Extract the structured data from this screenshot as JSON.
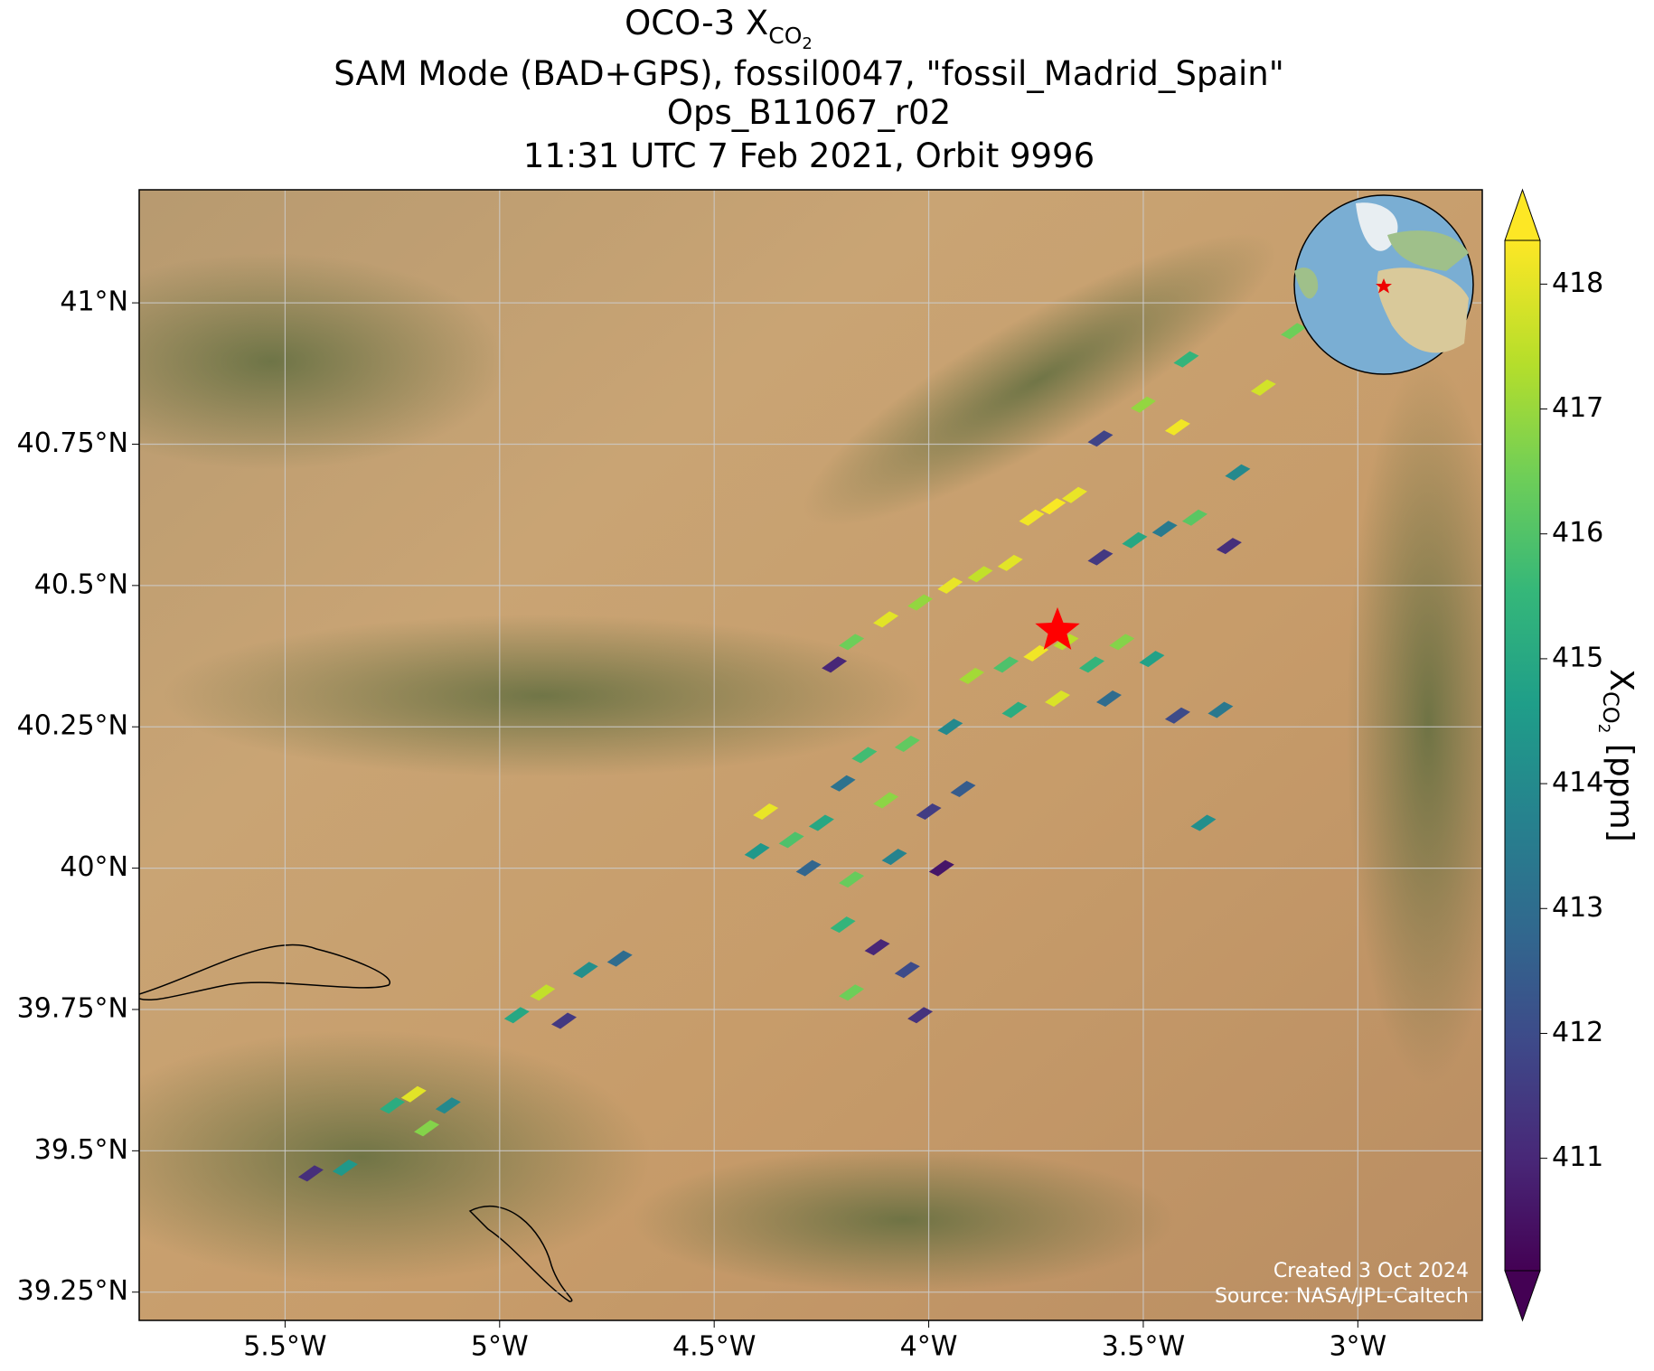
{
  "chart_data": {
    "type": "map",
    "title_prefix": "OCO-3 X",
    "title_sub": "CO",
    "title_subsub": "2",
    "title_lines": [
      "SAM Mode (BAD+GPS), fossil0047, \"fossil_Madrid_Spain\"",
      "Ops_B11067_r02",
      "11:31 UTC 7 Feb 2021, Orbit 9996"
    ],
    "xlim": [
      -5.84,
      -2.71
    ],
    "ylim": [
      39.2,
      41.2
    ],
    "xticks": [
      {
        "value": -5.5,
        "label": "5.5°W"
      },
      {
        "value": -5,
        "label": "5°W"
      },
      {
        "value": -4.5,
        "label": "4.5°W"
      },
      {
        "value": -4,
        "label": "4°W"
      },
      {
        "value": -3.5,
        "label": "3.5°W"
      },
      {
        "value": -3,
        "label": "3°W"
      }
    ],
    "yticks": [
      {
        "value": 39.25,
        "label": "39.25°N"
      },
      {
        "value": 39.5,
        "label": "39.5°N"
      },
      {
        "value": 39.75,
        "label": "39.75°N"
      },
      {
        "value": 40,
        "label": "40°N"
      },
      {
        "value": 40.25,
        "label": "40.25°N"
      },
      {
        "value": 40.5,
        "label": "40.5°N"
      },
      {
        "value": 40.75,
        "label": "40.75°N"
      },
      {
        "value": 41,
        "label": "41°N"
      }
    ],
    "grid": true,
    "colorbar": {
      "lim": [
        410.1,
        418.35
      ],
      "ticks": [
        411,
        412,
        413,
        414,
        415,
        416,
        417,
        418
      ],
      "label_main": "X",
      "label_sub": "CO",
      "label_subsub": "2",
      "label_unit": " [ppm]"
    },
    "target": {
      "lon": -3.7,
      "lat": 40.42
    },
    "soundings": [
      [
        -3.71,
        40.64,
        418.3
      ],
      [
        -3.76,
        40.62,
        418.2
      ],
      [
        -3.66,
        40.66,
        418.1
      ],
      [
        -3.81,
        40.54,
        418.0
      ],
      [
        -3.88,
        40.52,
        417.6
      ],
      [
        -3.95,
        40.5,
        418.1
      ],
      [
        -4.02,
        40.47,
        417.0
      ],
      [
        -4.1,
        40.44,
        418.0
      ],
      [
        -4.18,
        40.4,
        416.5
      ],
      [
        -4.22,
        40.36,
        411.0
      ],
      [
        -3.6,
        40.55,
        411.5
      ],
      [
        -3.52,
        40.58,
        415.0
      ],
      [
        -3.45,
        40.6,
        413.5
      ],
      [
        -3.38,
        40.62,
        416.2
      ],
      [
        -3.3,
        40.57,
        411.2
      ],
      [
        -3.68,
        40.4,
        417.5
      ],
      [
        -3.75,
        40.38,
        418.2
      ],
      [
        -3.82,
        40.36,
        416.0
      ],
      [
        -3.9,
        40.34,
        417.2
      ],
      [
        -3.62,
        40.36,
        415.5
      ],
      [
        -3.55,
        40.4,
        416.8
      ],
      [
        -3.48,
        40.37,
        414.8
      ],
      [
        -3.58,
        40.3,
        413.0
      ],
      [
        -3.7,
        40.3,
        417.9
      ],
      [
        -3.8,
        40.28,
        415.2
      ],
      [
        -3.95,
        40.25,
        414.0
      ],
      [
        -4.05,
        40.22,
        416.3
      ],
      [
        -4.15,
        40.2,
        415.8
      ],
      [
        -4.2,
        40.15,
        413.2
      ],
      [
        -4.1,
        40.12,
        416.9
      ],
      [
        -4.0,
        40.1,
        411.6
      ],
      [
        -3.92,
        40.14,
        412.5
      ],
      [
        -4.25,
        40.08,
        415.0
      ],
      [
        -4.32,
        40.05,
        416.0
      ],
      [
        -4.38,
        40.1,
        418.1
      ],
      [
        -4.4,
        40.03,
        414.5
      ],
      [
        -4.28,
        40.0,
        412.8
      ],
      [
        -4.18,
        39.98,
        416.4
      ],
      [
        -4.08,
        40.02,
        413.8
      ],
      [
        -3.97,
        40.0,
        410.6
      ],
      [
        -4.2,
        39.9,
        415.5
      ],
      [
        -4.12,
        39.86,
        411.0
      ],
      [
        -4.05,
        39.82,
        412.0
      ],
      [
        -4.18,
        39.78,
        416.5
      ],
      [
        -4.02,
        39.74,
        411.3
      ],
      [
        -3.42,
        40.27,
        412.0
      ],
      [
        -3.32,
        40.28,
        413.4
      ],
      [
        -3.36,
        40.08,
        414.2
      ],
      [
        -3.5,
        40.82,
        417.0
      ],
      [
        -3.42,
        40.78,
        418.2
      ],
      [
        -3.28,
        40.7,
        414.0
      ],
      [
        -3.22,
        40.85,
        417.8
      ],
      [
        -3.15,
        40.95,
        416.5
      ],
      [
        -3.4,
        40.9,
        415.5
      ],
      [
        -3.6,
        40.76,
        411.8
      ],
      [
        -4.8,
        39.82,
        414.2
      ],
      [
        -4.72,
        39.84,
        413.0
      ],
      [
        -4.9,
        39.78,
        417.6
      ],
      [
        -4.96,
        39.74,
        415.0
      ],
      [
        -4.85,
        39.73,
        411.5
      ],
      [
        -5.2,
        39.6,
        418.0
      ],
      [
        -5.25,
        39.58,
        415.2
      ],
      [
        -5.12,
        39.58,
        414.0
      ],
      [
        -5.17,
        39.54,
        416.8
      ],
      [
        -5.36,
        39.47,
        414.5
      ],
      [
        -5.44,
        39.46,
        411.2
      ]
    ],
    "credit_lines": [
      "Created 3 Oct 2024",
      "Source: NASA/JPL-Caltech"
    ]
  }
}
